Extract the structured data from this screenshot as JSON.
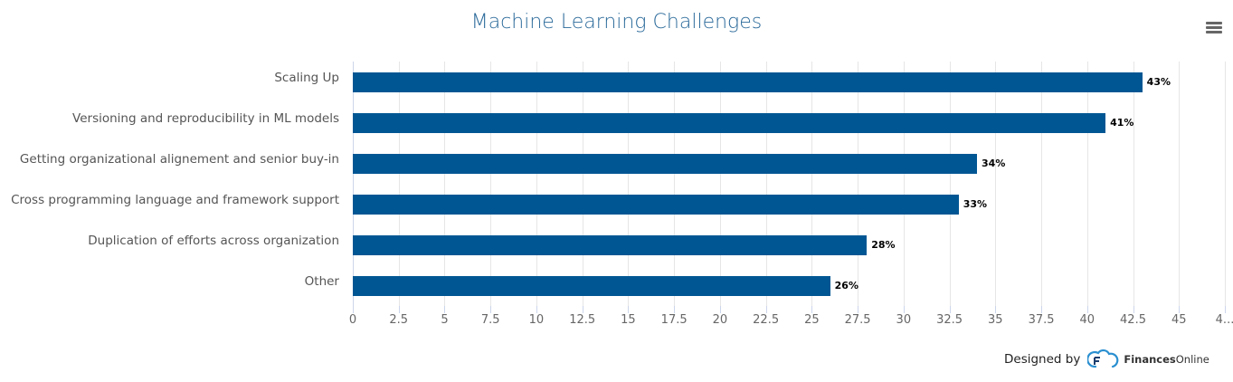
{
  "title": "Machine Learning Challenges",
  "menu": {
    "icon": "hamburger-menu-icon"
  },
  "colors": {
    "bar": "#005693",
    "title": "#2b6a9a",
    "grid": "#e6e6e6"
  },
  "credit": {
    "prefix": "Designed by",
    "brand_bold": "Finances",
    "brand_rest": "Online",
    "icon": "financesonline-cloud-logo-icon"
  },
  "chart_data": {
    "type": "bar",
    "orientation": "horizontal",
    "title": "Machine Learning Challenges",
    "xlabel": "",
    "ylabel": "",
    "categories": [
      "Scaling Up",
      "Versioning and reproducibility in ML models",
      "Getting organizational alignement and senior buy-in",
      "Cross programming language and framework support",
      "Duplication of efforts across organization",
      "Other"
    ],
    "values": [
      43,
      41,
      34,
      33,
      28,
      26
    ],
    "data_labels": [
      "43%",
      "41%",
      "34%",
      "33%",
      "28%",
      "26%"
    ],
    "xlim": [
      0,
      47.5
    ],
    "x_ticks": [
      "0",
      "2.5",
      "5",
      "7.5",
      "10",
      "12.5",
      "15",
      "17.5",
      "20",
      "22.5",
      "25",
      "27.5",
      "30",
      "32.5",
      "35",
      "37.5",
      "40",
      "42.5",
      "45",
      "4..."
    ],
    "grid": true,
    "legend": "none"
  }
}
